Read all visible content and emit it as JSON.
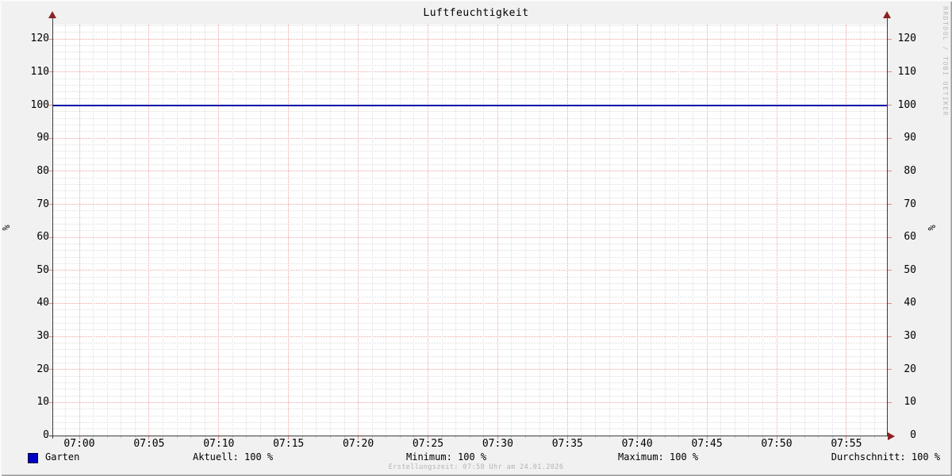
{
  "title": "Luftfeuchtigkeit",
  "watermark": "RRDTOOL / TOBI OETIKER",
  "footer": "Erstellungszeit: 07:58 Uhr am 24.01.2026",
  "legend": {
    "series_label": "Garten",
    "swatch_color": "#0000c4",
    "aktuell": "Aktuell: 100 %",
    "minimum": "Minimum: 100 %",
    "maximum": "Maximum: 100 %",
    "durchschnitt": "Durchschnitt: 100 %"
  },
  "chart_data": {
    "type": "line",
    "title": "Luftfeuchtigkeit",
    "ylabel": "%",
    "ylabel_right": "%",
    "ylim": [
      0,
      124.4
    ],
    "y_ticks": [
      0,
      10,
      20,
      30,
      40,
      50,
      60,
      70,
      80,
      90,
      100,
      110,
      120
    ],
    "y_minor_step": 2,
    "x_window": [
      "06:58",
      "07:58"
    ],
    "x_ticks": [
      "07:00",
      "07:05",
      "07:10",
      "07:15",
      "07:20",
      "07:25",
      "07:30",
      "07:35",
      "07:40",
      "07:45",
      "07:50",
      "07:55"
    ],
    "x_major_step_minutes": 5,
    "x_minor_step_minutes": 1,
    "grid": true,
    "legend_position": "bottom",
    "series": [
      {
        "name": "Garten",
        "color": "#0000a6",
        "constant_value": 100,
        "x": [
          "07:00",
          "07:05",
          "07:10",
          "07:15",
          "07:20",
          "07:25",
          "07:30",
          "07:35",
          "07:40",
          "07:45",
          "07:50",
          "07:55"
        ],
        "values": [
          100,
          100,
          100,
          100,
          100,
          100,
          100,
          100,
          100,
          100,
          100,
          100
        ]
      }
    ],
    "stats": {
      "aktuell": 100,
      "minimum": 100,
      "maximum": 100,
      "durchschnitt": 100,
      "unit": "%"
    }
  }
}
